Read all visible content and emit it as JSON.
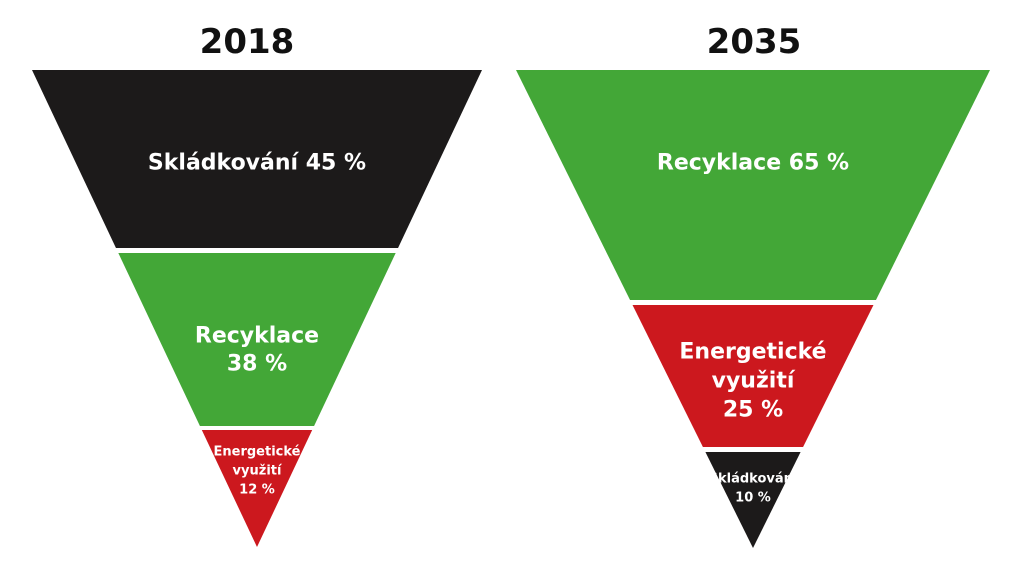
{
  "colors": {
    "landfill": "#1c1a1a",
    "recycling": "#43a737",
    "energy": "#cc181e",
    "text": "#ffffff",
    "year": "#111111"
  },
  "left": {
    "year": "2018",
    "segments": [
      {
        "lines": [
          "Skládkování 45 %"
        ],
        "share_percent": 45,
        "kind": "landfill"
      },
      {
        "lines": [
          "Recyklace",
          "38 %"
        ],
        "share_percent": 38,
        "kind": "recycling"
      },
      {
        "lines": [
          "Energetické",
          "využití",
          "12 %"
        ],
        "share_percent": 12,
        "kind": "energy"
      }
    ]
  },
  "right": {
    "year": "2035",
    "segments": [
      {
        "lines": [
          "Recyklace 65 %"
        ],
        "share_percent": 65,
        "kind": "recycling"
      },
      {
        "lines": [
          "Energetické",
          "využití",
          "25 %"
        ],
        "share_percent": 25,
        "kind": "energy"
      },
      {
        "lines": [
          "Skládkování",
          "10 %"
        ],
        "share_percent": 10,
        "kind": "landfill"
      }
    ]
  }
}
